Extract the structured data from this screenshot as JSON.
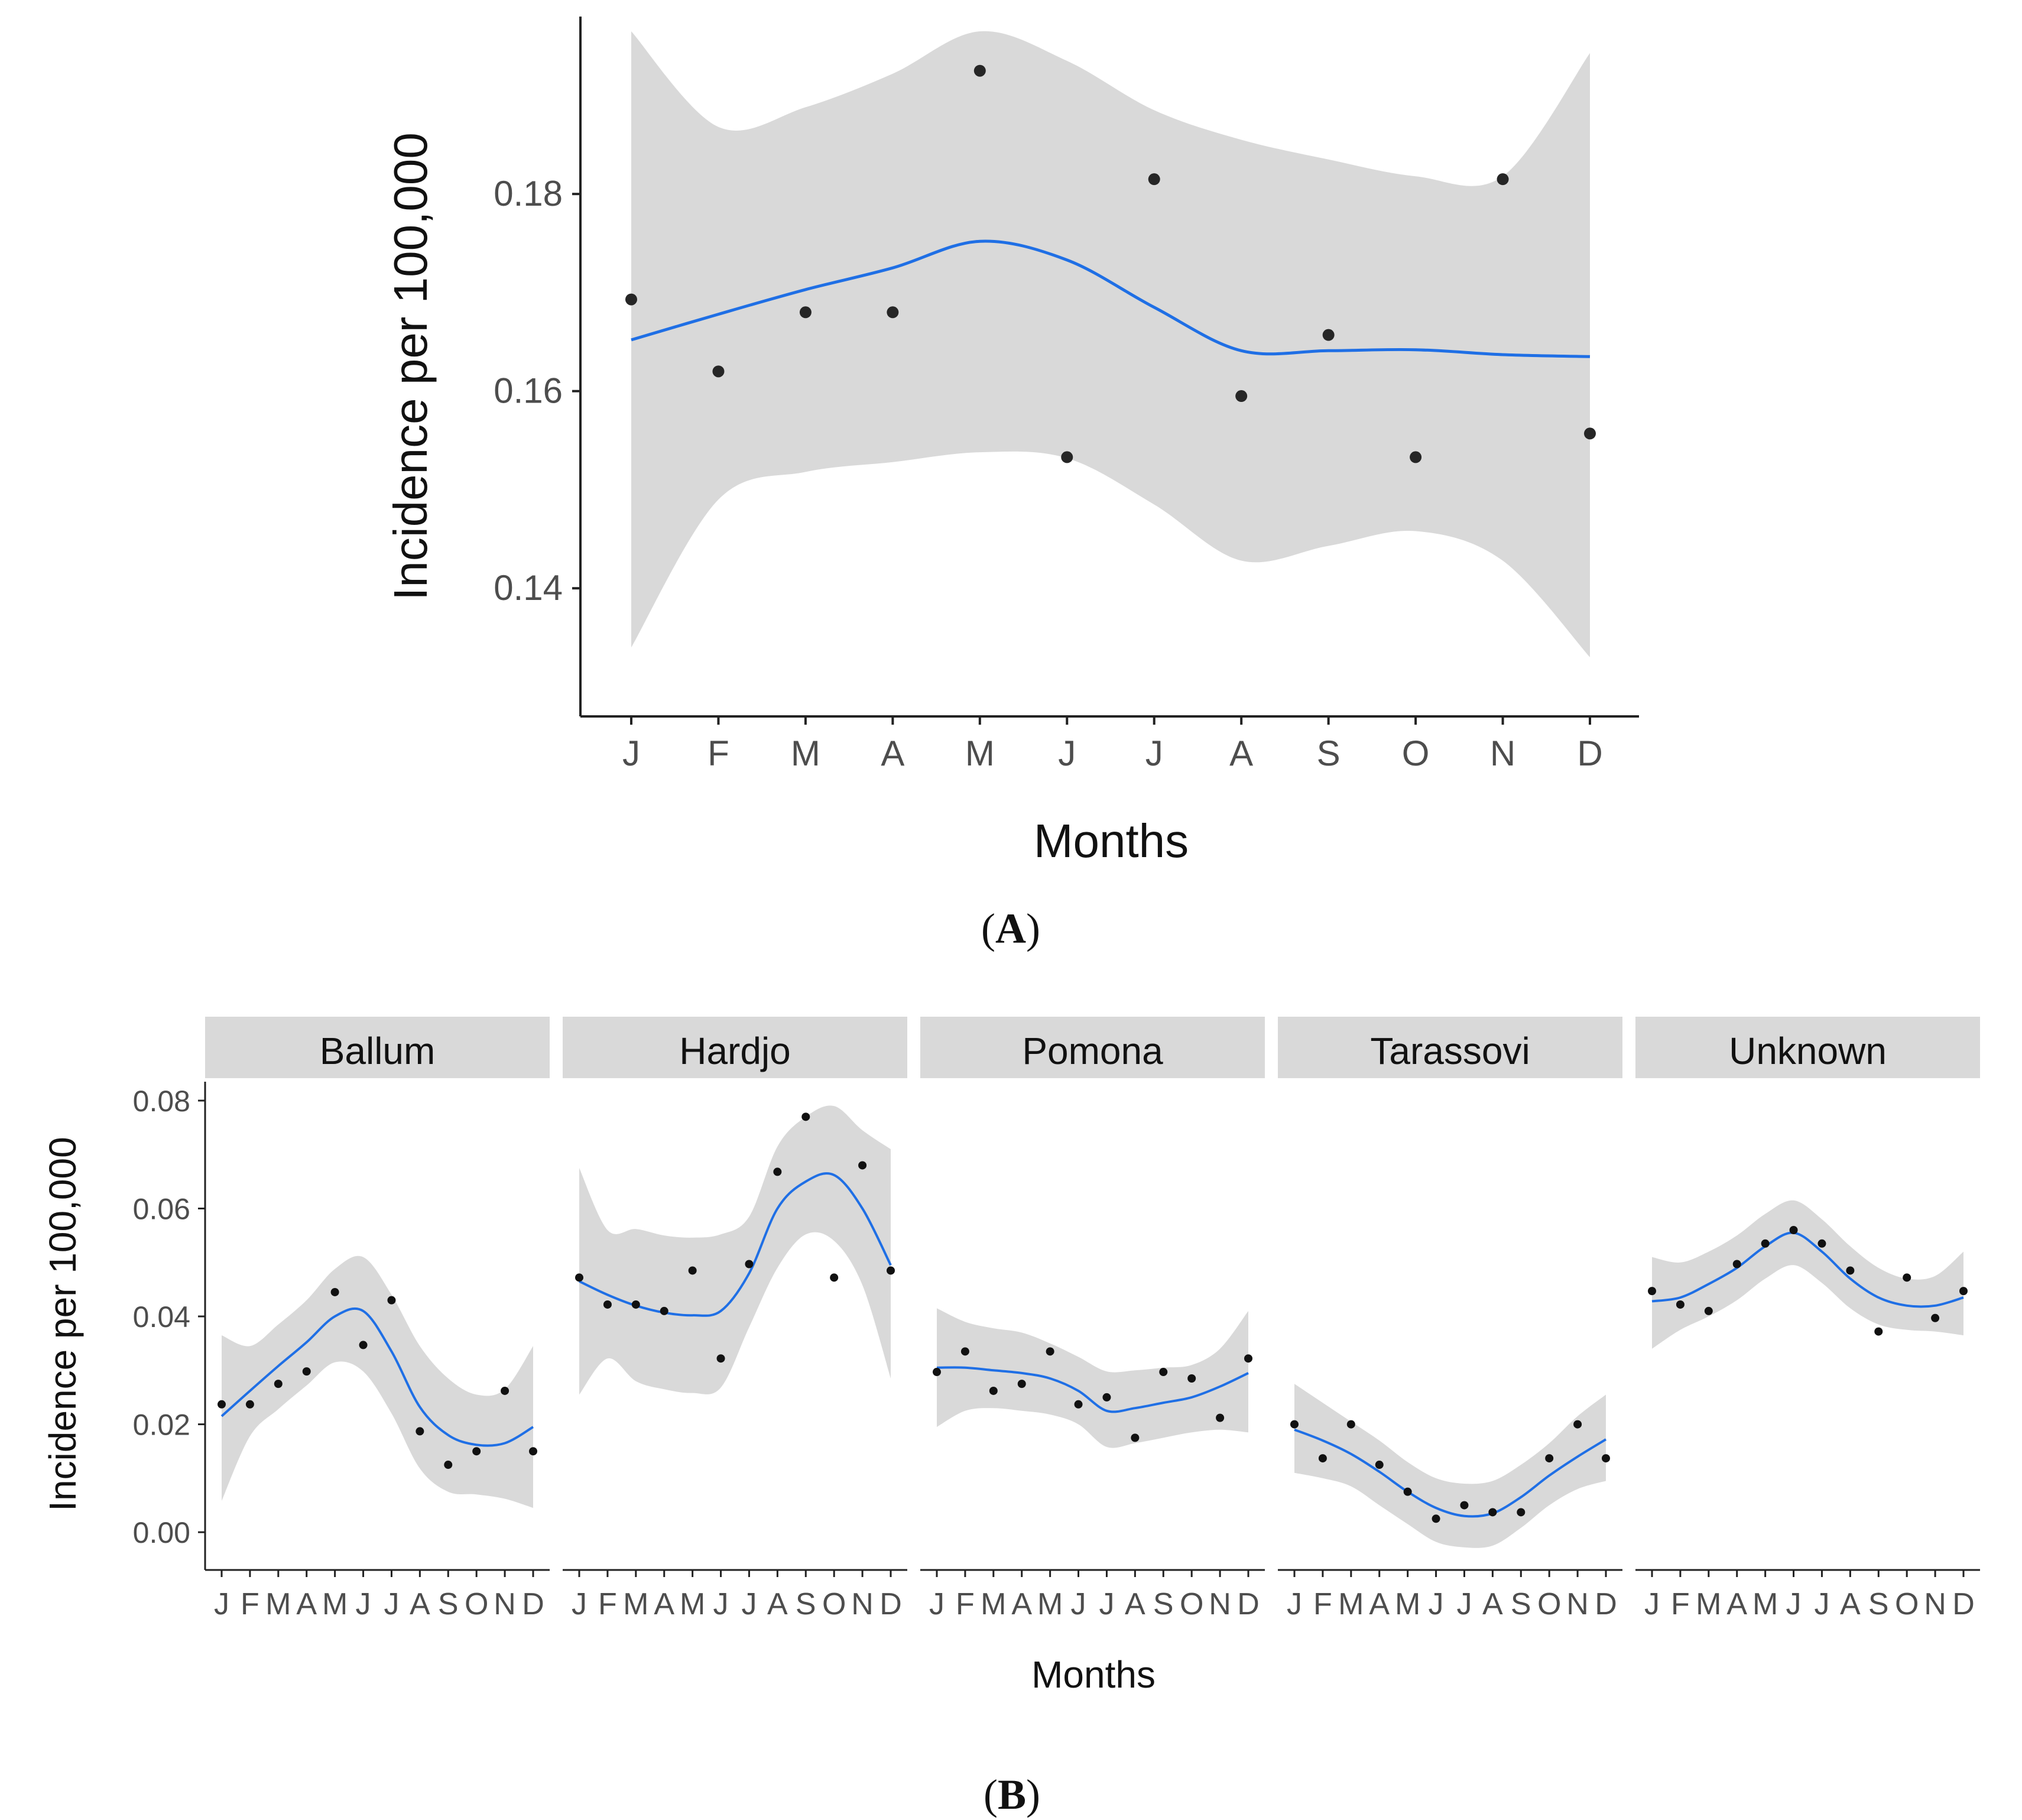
{
  "colors": {
    "band": "#d9d9d9",
    "smooth_line": "#1f6fe5",
    "points": "#262626",
    "axis": "#222222",
    "tick_text": "#4d4d4d",
    "strip": "#d9d9d9"
  },
  "panel_a": {
    "label_open": "(",
    "label_letter": "A",
    "label_close": ")"
  },
  "panel_b": {
    "label_open": "(",
    "label_letter": "B",
    "label_close": ")"
  },
  "chart_data": [
    {
      "id": "A",
      "type": "scatter",
      "title": "",
      "xlabel": "Months",
      "ylabel": "Incidence per 100,000",
      "categories": [
        "J",
        "F",
        "M",
        "A",
        "M",
        "J",
        "J",
        "A",
        "S",
        "O",
        "N",
        "D"
      ],
      "ylim": [
        0.127,
        0.198
      ],
      "yticks": [
        0.14,
        0.16,
        0.18
      ],
      "ytick_labels": [
        "0.14",
        "0.16",
        "0.18"
      ],
      "grid": false,
      "series": [
        {
          "name": "observed",
          "values": [
            0.1693,
            0.162,
            0.168,
            0.168,
            0.1925,
            0.1533,
            0.1815,
            0.1595,
            0.1657,
            0.1533,
            0.1815,
            0.1557
          ]
        },
        {
          "name": "loess fit",
          "values": [
            0.1652,
            0.1678,
            0.1703,
            0.1725,
            0.1752,
            0.1733,
            0.1685,
            0.1641,
            0.1641,
            0.1642,
            0.1637,
            0.1635
          ]
        },
        {
          "name": "ci lower",
          "values": [
            0.134,
            0.149,
            0.1518,
            0.1528,
            0.1538,
            0.1532,
            0.1485,
            0.1428,
            0.1443,
            0.1458,
            0.1428,
            0.133
          ]
        },
        {
          "name": "ci upper",
          "values": [
            0.1965,
            0.1868,
            0.1888,
            0.1922,
            0.1965,
            0.1935,
            0.1885,
            0.1855,
            0.1835,
            0.1818,
            0.1818,
            0.1943
          ]
        }
      ]
    },
    {
      "id": "B",
      "type": "scatter",
      "title": "",
      "xlabel": "Months",
      "ylabel": "Incidence per 100,000",
      "ylim": [
        -0.007,
        0.0835
      ],
      "yticks": [
        0.0,
        0.02,
        0.04,
        0.06,
        0.08
      ],
      "ytick_labels": [
        "0.00",
        "0.02",
        "0.04",
        "0.06",
        "0.08"
      ],
      "grid": false,
      "facets": [
        {
          "name": "Ballum",
          "categories": [
            "J",
            "F",
            "M",
            "A",
            "M",
            "J",
            "J",
            "A",
            "S",
            "O",
            "N",
            "D"
          ],
          "values": [
            0.0237,
            0.0237,
            0.0275,
            0.0298,
            0.0445,
            0.0347,
            0.043,
            0.0187,
            0.0125,
            0.015,
            0.0262,
            0.015
          ],
          "fit": [
            0.0215,
            0.0262,
            0.0308,
            0.0352,
            0.04,
            0.041,
            0.0335,
            0.0232,
            0.018,
            0.0162,
            0.0165,
            0.0195
          ],
          "lower": [
            0.0058,
            0.0178,
            0.0228,
            0.0272,
            0.0315,
            0.0298,
            0.022,
            0.0118,
            0.0075,
            0.007,
            0.0062,
            0.0045
          ],
          "upper": [
            0.0365,
            0.0345,
            0.0385,
            0.043,
            0.0488,
            0.051,
            0.044,
            0.0345,
            0.0285,
            0.0255,
            0.0265,
            0.0345
          ]
        },
        {
          "name": "Hardjo",
          "categories": [
            "J",
            "F",
            "M",
            "A",
            "M",
            "J",
            "J",
            "A",
            "S",
            "O",
            "N",
            "D"
          ],
          "values": [
            0.0472,
            0.0422,
            0.0422,
            0.041,
            0.0485,
            0.0322,
            0.0497,
            0.0668,
            0.077,
            0.0472,
            0.068,
            0.0485
          ],
          "fit": [
            0.0465,
            0.044,
            0.042,
            0.0407,
            0.0402,
            0.041,
            0.048,
            0.06,
            0.065,
            0.0662,
            0.06,
            0.0495
          ],
          "lower": [
            0.0255,
            0.0322,
            0.028,
            0.0265,
            0.0258,
            0.0268,
            0.038,
            0.049,
            0.0552,
            0.054,
            0.0458,
            0.0285
          ],
          "upper": [
            0.0675,
            0.056,
            0.0562,
            0.055,
            0.0546,
            0.0552,
            0.0585,
            0.0715,
            0.077,
            0.079,
            0.0745,
            0.071
          ]
        },
        {
          "name": "Pomona",
          "categories": [
            "J",
            "F",
            "M",
            "A",
            "M",
            "J",
            "J",
            "A",
            "S",
            "O",
            "N",
            "D"
          ],
          "values": [
            0.0297,
            0.0335,
            0.0262,
            0.0275,
            0.0335,
            0.0237,
            0.025,
            0.0175,
            0.0297,
            0.0285,
            0.0212,
            0.0322
          ],
          "fit": [
            0.0305,
            0.0305,
            0.03,
            0.0295,
            0.0285,
            0.0262,
            0.0225,
            0.023,
            0.024,
            0.025,
            0.027,
            0.0295
          ],
          "lower": [
            0.0195,
            0.0225,
            0.023,
            0.0225,
            0.0218,
            0.02,
            0.0158,
            0.0165,
            0.0175,
            0.0185,
            0.019,
            0.0185
          ],
          "upper": [
            0.0415,
            0.039,
            0.0378,
            0.037,
            0.035,
            0.0325,
            0.0298,
            0.03,
            0.0305,
            0.031,
            0.034,
            0.041
          ]
        },
        {
          "name": "Tarassovi",
          "categories": [
            "J",
            "F",
            "M",
            "A",
            "M",
            "J",
            "J",
            "A",
            "S",
            "O",
            "N",
            "D"
          ],
          "values": [
            0.02,
            0.0137,
            0.02,
            0.0125,
            0.0075,
            0.0025,
            0.005,
            0.0037,
            0.0037,
            0.0137,
            0.02,
            0.0137
          ],
          "fit": [
            0.019,
            0.017,
            0.0145,
            0.0112,
            0.0075,
            0.0045,
            0.003,
            0.0035,
            0.0065,
            0.0105,
            0.014,
            0.0172
          ],
          "lower": [
            0.011,
            0.01,
            0.0085,
            0.005,
            0.0015,
            -0.0018,
            -0.0028,
            -0.0025,
            0.0008,
            0.005,
            0.008,
            0.0095
          ],
          "upper": [
            0.0275,
            0.024,
            0.0205,
            0.017,
            0.013,
            0.01,
            0.009,
            0.0095,
            0.0125,
            0.0165,
            0.0215,
            0.0255
          ]
        },
        {
          "name": "Unknown",
          "categories": [
            "J",
            "F",
            "M",
            "A",
            "M",
            "J",
            "J",
            "A",
            "S",
            "O",
            "N",
            "D"
          ],
          "values": [
            0.0447,
            0.0422,
            0.041,
            0.0497,
            0.0535,
            0.056,
            0.0535,
            0.0485,
            0.0372,
            0.0472,
            0.0397,
            0.0447
          ],
          "fit": [
            0.0428,
            0.0435,
            0.046,
            0.049,
            0.053,
            0.0555,
            0.052,
            0.047,
            0.0435,
            0.042,
            0.042,
            0.0435
          ],
          "lower": [
            0.034,
            0.0375,
            0.04,
            0.043,
            0.047,
            0.0495,
            0.0462,
            0.0415,
            0.0385,
            0.0375,
            0.0372,
            0.0365
          ],
          "upper": [
            0.051,
            0.05,
            0.052,
            0.055,
            0.059,
            0.0615,
            0.058,
            0.053,
            0.049,
            0.047,
            0.0475,
            0.052
          ]
        }
      ]
    }
  ]
}
